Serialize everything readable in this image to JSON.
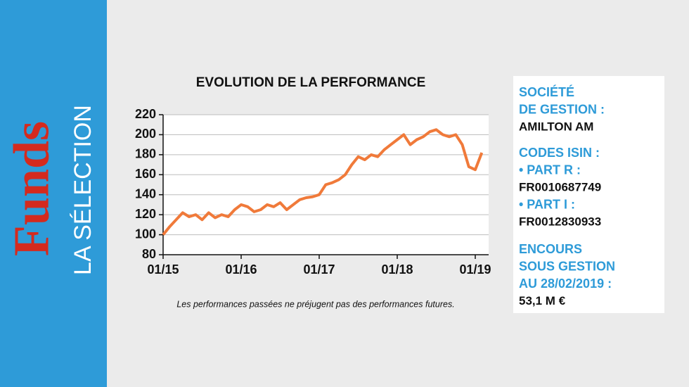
{
  "sidebar": {
    "brand": "Funds",
    "subtitle": "LA SÉLECTION"
  },
  "chart_data": {
    "type": "line",
    "title": "EVOLUTION DE LA PERFORMANCE",
    "note": "Les performances passées ne préjugent pas des performances futures.",
    "categories": [
      "01/15",
      "02/15",
      "03/15",
      "04/15",
      "05/15",
      "06/15",
      "07/15",
      "08/15",
      "09/15",
      "10/15",
      "11/15",
      "12/15",
      "01/16",
      "02/16",
      "03/16",
      "04/16",
      "05/16",
      "06/16",
      "07/16",
      "08/16",
      "09/16",
      "10/16",
      "11/16",
      "12/16",
      "01/17",
      "02/17",
      "03/17",
      "04/17",
      "05/17",
      "06/17",
      "07/17",
      "08/17",
      "09/17",
      "10/17",
      "11/17",
      "12/17",
      "01/18",
      "02/18",
      "03/18",
      "04/18",
      "05/18",
      "06/18",
      "07/18",
      "08/18",
      "09/18",
      "10/18",
      "11/18",
      "12/18",
      "01/19",
      "02/19"
    ],
    "series": [
      {
        "name": "Performance",
        "color": "#f07a3a",
        "values": [
          100,
          108,
          115,
          122,
          118,
          120,
          115,
          122,
          117,
          120,
          118,
          125,
          130,
          128,
          123,
          125,
          130,
          128,
          132,
          125,
          130,
          135,
          137,
          138,
          140,
          150,
          152,
          155,
          160,
          170,
          178,
          175,
          180,
          178,
          185,
          190,
          195,
          200,
          190,
          195,
          198,
          203,
          205,
          200,
          198,
          200,
          190,
          168,
          165,
          182
        ]
      }
    ],
    "xticks": [
      "01/15",
      "01/16",
      "01/17",
      "01/18",
      "01/19"
    ],
    "ylim": [
      80,
      220
    ],
    "yticks": [
      80,
      100,
      120,
      140,
      160,
      180,
      200,
      220
    ],
    "grid": true
  },
  "info": {
    "blocks": [
      {
        "labels": [
          "SOCIÉTÉ",
          "DE GESTION :"
        ],
        "value": "AMILTON AM"
      },
      {
        "labels": [
          "CODES ISIN :",
          "• PART R :"
        ],
        "value": "FR0010687749"
      },
      {
        "labels": [
          "• PART I :"
        ],
        "value": "FR0012830933"
      },
      {
        "labels": [
          "ENCOURS",
          "SOUS GESTION",
          "AU 28/02/2019 :"
        ],
        "value": "53,1 M €"
      }
    ]
  }
}
